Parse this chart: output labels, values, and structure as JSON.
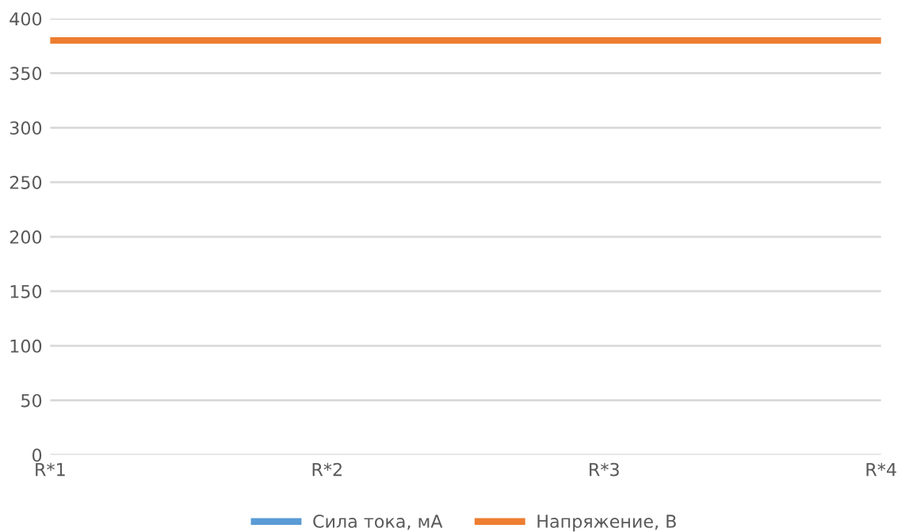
{
  "chart_data": {
    "type": "line",
    "categories": [
      "R*1",
      "R*2",
      "R*3",
      "R*4"
    ],
    "series": [
      {
        "name": "Сила тока, мА",
        "color": "#5b9bd5",
        "values": [
          null,
          null,
          null,
          null
        ]
      },
      {
        "name": "Напряжение, В",
        "color": "#ed7d31",
        "values": [
          380,
          380,
          380,
          380
        ]
      }
    ],
    "ylim": [
      0,
      400
    ],
    "yticks": [
      0,
      50,
      100,
      150,
      200,
      250,
      300,
      350,
      400
    ],
    "grid": "y",
    "legend": "bottom",
    "marker": "none",
    "line_style": "solid"
  }
}
